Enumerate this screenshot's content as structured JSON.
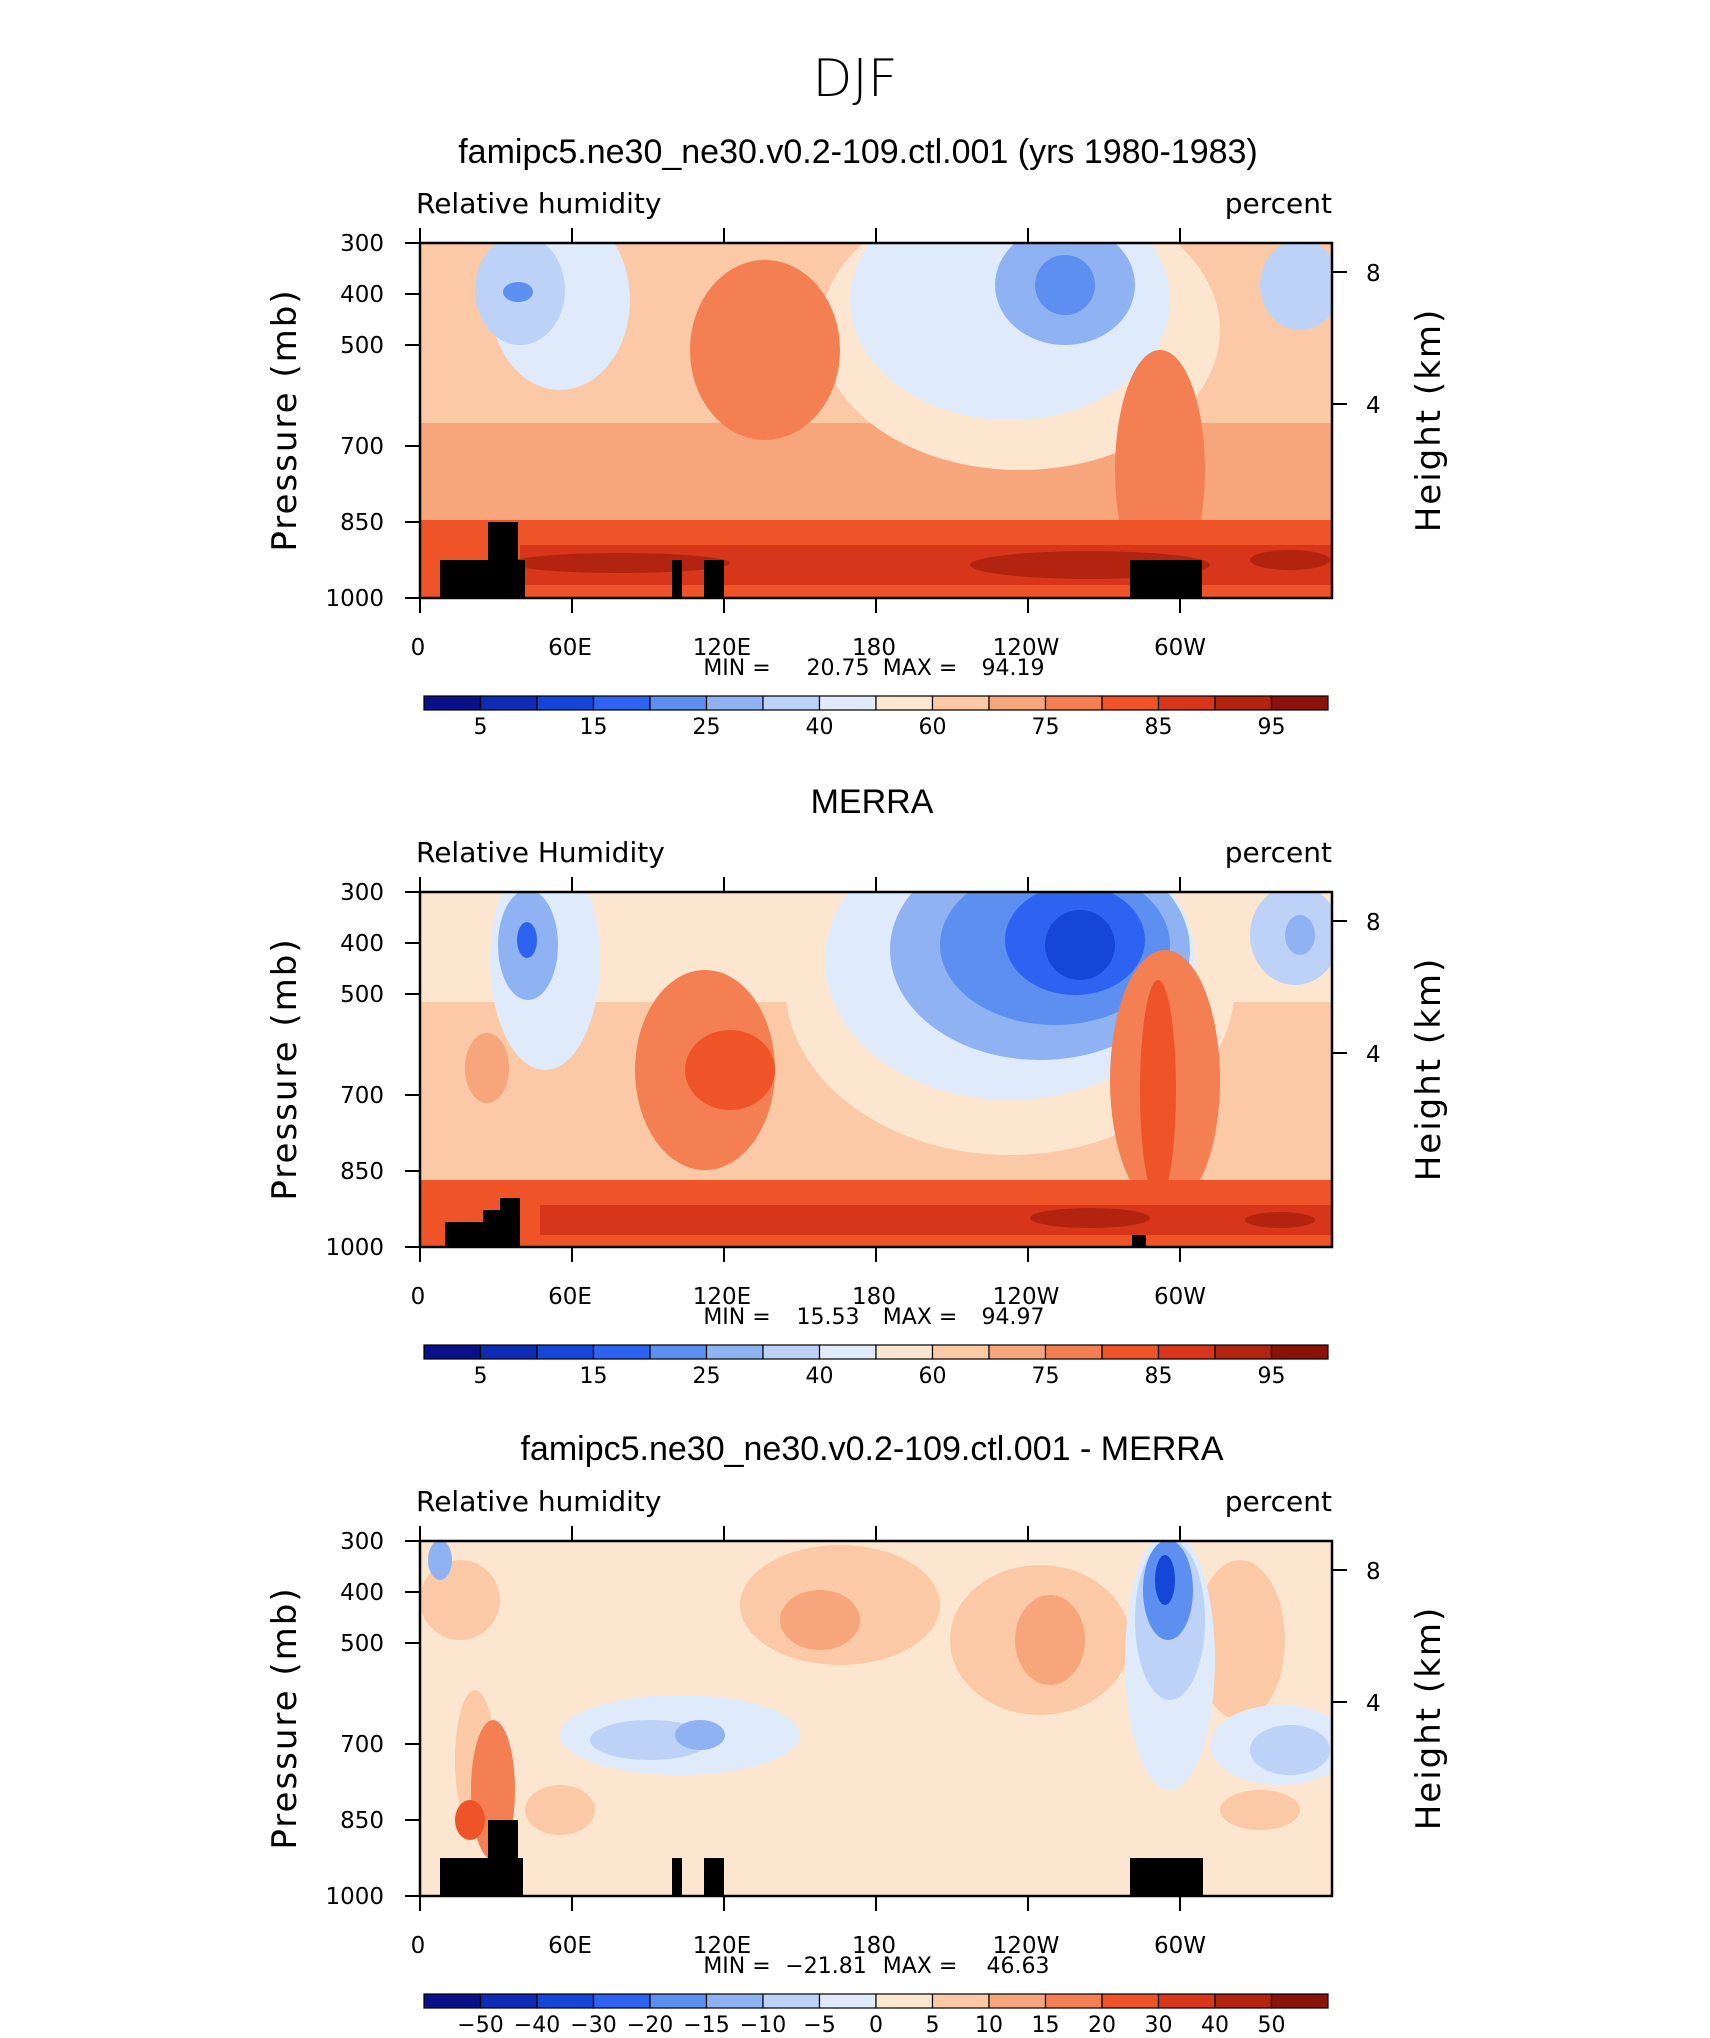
{
  "main_title": "DJF",
  "chart_data": [
    {
      "type": "contour",
      "title": "famipc5.ne30_ne30.v0.2-109.ctl.001 (yrs 1980-1983)",
      "left_label": "Relative humidity",
      "right_label": "percent",
      "ylabel": "Pressure (mb)",
      "y2label": "Height (km)",
      "yticks": [
        "300",
        "400",
        "500",
        "700",
        "850",
        "1000"
      ],
      "y2ticks": [
        "8",
        "4"
      ],
      "xticks": [
        "0",
        "60E",
        "120E",
        "180",
        "120W",
        "60W"
      ],
      "stats": {
        "min_label": "MIN =",
        "min": "20.75",
        "max_label": "MAX =",
        "max": "94.19"
      },
      "colorbar_labels": [
        "5",
        "15",
        "25",
        "40",
        "60",
        "75",
        "85",
        "95"
      ],
      "range": [
        20.75,
        94.19
      ]
    },
    {
      "type": "contour",
      "title": "MERRA",
      "left_label": "Relative Humidity",
      "right_label": "percent",
      "ylabel": "Pressure (mb)",
      "y2label": "Height (km)",
      "yticks": [
        "300",
        "400",
        "500",
        "700",
        "850",
        "1000"
      ],
      "y2ticks": [
        "8",
        "4"
      ],
      "xticks": [
        "0",
        "60E",
        "120E",
        "180",
        "120W",
        "60W"
      ],
      "stats": {
        "min_label": "MIN =",
        "min": "15.53",
        "max_label": "MAX =",
        "max": "94.97"
      },
      "colorbar_labels": [
        "5",
        "15",
        "25",
        "40",
        "60",
        "75",
        "85",
        "95"
      ],
      "range": [
        15.53,
        94.97
      ]
    },
    {
      "type": "contour",
      "title": "famipc5.ne30_ne30.v0.2-109.ctl.001 - MERRA",
      "left_label": "Relative humidity",
      "right_label": "percent",
      "ylabel": "Pressure (mb)",
      "y2label": "Height (km)",
      "yticks": [
        "300",
        "400",
        "500",
        "700",
        "850",
        "1000"
      ],
      "y2ticks": [
        "8",
        "4"
      ],
      "xticks": [
        "0",
        "60E",
        "120E",
        "180",
        "120W",
        "60W"
      ],
      "stats": {
        "min_label": "MIN =",
        "min": "−21.81",
        "max_label": "MAX =",
        "max": "46.63"
      },
      "colorbar_labels": [
        "−50",
        "−40",
        "−30",
        "−20",
        "−15",
        "−10",
        "−5",
        "0",
        "5",
        "10",
        "15",
        "20",
        "30",
        "40",
        "50"
      ],
      "range": [
        -21.81,
        46.63
      ]
    }
  ],
  "colorbar_colors": [
    "#0a0f8a",
    "#0d2bb5",
    "#1546d8",
    "#2e62f0",
    "#5d8ff0",
    "#8fb2f2",
    "#bcd2f6",
    "#dfeafb",
    "#fde6cf",
    "#fbc9a6",
    "#f7a67c",
    "#f37f52",
    "#ee5428",
    "#d7361a",
    "#b22410",
    "#8a1208"
  ]
}
